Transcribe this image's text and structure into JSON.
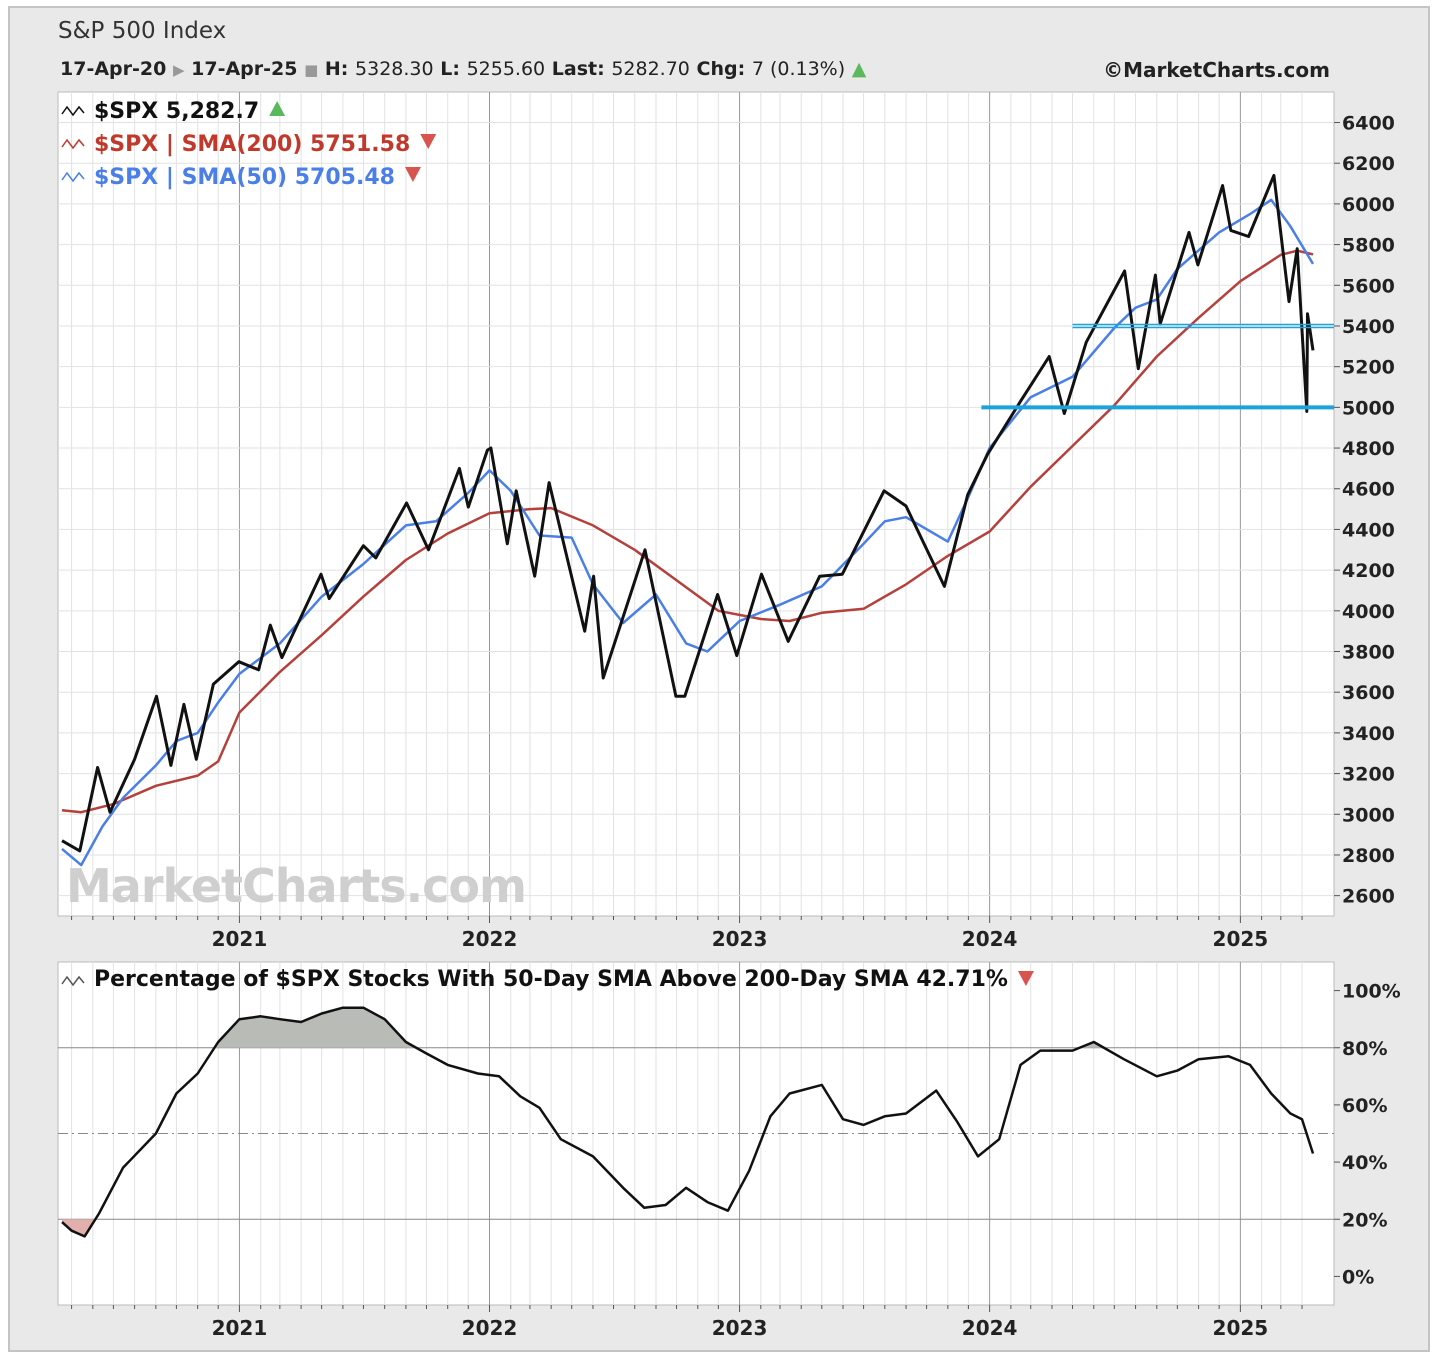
{
  "header": {
    "title": "S&P 500 Index",
    "start_date": "17-Apr-20",
    "end_date": "17-Apr-25",
    "high_label": "H:",
    "high": "5328.30",
    "low_label": "L:",
    "low": "5255.60",
    "last_label": "Last:",
    "last": "5282.70",
    "chg_label": "Chg:",
    "chg": "7 (0.13%)",
    "copyright": "©MarketCharts.com",
    "watermark": "MarketCharts.com"
  },
  "colors": {
    "price": "#111111",
    "sma200": "#b5403c",
    "sma50": "#4a7fe8",
    "hline": "#1aa3dc",
    "up": "#5cb85c",
    "down": "#d9534f"
  },
  "legend_top": [
    {
      "text": "$SPX 5,282.7",
      "color": "#111111",
      "arrow": "up"
    },
    {
      "text": "$SPX | SMA(200) 5751.58",
      "color": "#c0392b",
      "arrow": "down"
    },
    {
      "text": "$SPX | SMA(50) 5705.48",
      "color": "#4a7fe8",
      "arrow": "down"
    }
  ],
  "legend_bottom": {
    "text": "Percentage of $SPX Stocks With 50-Day SMA Above 200-Day SMA 42.71%",
    "color": "#111111",
    "arrow": "down"
  },
  "chart_data": [
    {
      "type": "line",
      "x_ticks": [
        "2021",
        "2022",
        "2023",
        "2024",
        "2025"
      ],
      "ylim": [
        2500,
        6550
      ],
      "y_ticks": [
        2600,
        2800,
        3000,
        3200,
        3400,
        3600,
        3800,
        4000,
        4200,
        4400,
        4600,
        4800,
        5000,
        5200,
        5400,
        5600,
        5800,
        6000,
        6200,
        6400
      ],
      "series": [
        {
          "name": "$SPX",
          "points": [
            [
              "2020-04-17",
              2870
            ],
            [
              "2020-05-13",
              2820
            ],
            [
              "2020-06-08",
              3230
            ],
            [
              "2020-06-26",
              3010
            ],
            [
              "2020-08-01",
              3270
            ],
            [
              "2020-09-02",
              3580
            ],
            [
              "2020-09-23",
              3240
            ],
            [
              "2020-10-12",
              3540
            ],
            [
              "2020-10-30",
              3270
            ],
            [
              "2020-11-24",
              3640
            ],
            [
              "2020-12-31",
              3750
            ],
            [
              "2021-01-29",
              3710
            ],
            [
              "2021-02-15",
              3930
            ],
            [
              "2021-03-04",
              3770
            ],
            [
              "2021-04-30",
              4180
            ],
            [
              "2021-05-12",
              4060
            ],
            [
              "2021-07-01",
              4320
            ],
            [
              "2021-07-19",
              4260
            ],
            [
              "2021-09-02",
              4530
            ],
            [
              "2021-10-04",
              4300
            ],
            [
              "2021-11-18",
              4700
            ],
            [
              "2021-12-01",
              4510
            ],
            [
              "2021-12-29",
              4790
            ],
            [
              "2022-01-03",
              4800
            ],
            [
              "2022-01-27",
              4330
            ],
            [
              "2022-02-09",
              4590
            ],
            [
              "2022-03-08",
              4170
            ],
            [
              "2022-03-29",
              4630
            ],
            [
              "2022-05-20",
              3900
            ],
            [
              "2022-06-02",
              4170
            ],
            [
              "2022-06-16",
              3670
            ],
            [
              "2022-08-16",
              4300
            ],
            [
              "2022-09-30",
              3580
            ],
            [
              "2022-10-13",
              3580
            ],
            [
              "2022-11-30",
              4080
            ],
            [
              "2022-12-28",
              3780
            ],
            [
              "2023-02-02",
              4180
            ],
            [
              "2023-03-13",
              3850
            ],
            [
              "2023-04-28",
              4170
            ],
            [
              "2023-05-31",
              4180
            ],
            [
              "2023-07-31",
              4590
            ],
            [
              "2023-09-01",
              4515
            ],
            [
              "2023-10-27",
              4120
            ],
            [
              "2023-11-30",
              4570
            ],
            [
              "2023-12-29",
              4770
            ],
            [
              "2024-02-15",
              5030
            ],
            [
              "2024-03-28",
              5250
            ],
            [
              "2024-04-19",
              4970
            ],
            [
              "2024-05-21",
              5320
            ],
            [
              "2024-07-16",
              5670
            ],
            [
              "2024-08-05",
              5190
            ],
            [
              "2024-08-30",
              5650
            ],
            [
              "2024-09-06",
              5410
            ],
            [
              "2024-10-18",
              5860
            ],
            [
              "2024-10-31",
              5700
            ],
            [
              "2024-12-06",
              6090
            ],
            [
              "2024-12-18",
              5870
            ],
            [
              "2025-01-13",
              5840
            ],
            [
              "2025-02-19",
              6140
            ],
            [
              "2025-03-13",
              5520
            ],
            [
              "2025-03-25",
              5780
            ],
            [
              "2025-04-08",
              4980
            ],
            [
              "2025-04-09",
              5460
            ],
            [
              "2025-04-17",
              5280
            ]
          ]
        },
        {
          "name": "$SPX | SMA(200)",
          "points": [
            [
              "2020-04-17",
              3020
            ],
            [
              "2020-05-15",
              3010
            ],
            [
              "2020-07-01",
              3050
            ],
            [
              "2020-09-01",
              3140
            ],
            [
              "2020-11-01",
              3190
            ],
            [
              "2020-12-01",
              3260
            ],
            [
              "2021-01-01",
              3500
            ],
            [
              "2021-03-01",
              3700
            ],
            [
              "2021-05-01",
              3880
            ],
            [
              "2021-07-01",
              4070
            ],
            [
              "2021-09-01",
              4250
            ],
            [
              "2021-11-01",
              4380
            ],
            [
              "2022-01-01",
              4480
            ],
            [
              "2022-03-01",
              4500
            ],
            [
              "2022-04-01",
              4505
            ],
            [
              "2022-06-01",
              4420
            ],
            [
              "2022-08-01",
              4300
            ],
            [
              "2022-10-01",
              4150
            ],
            [
              "2022-12-01",
              4000
            ],
            [
              "2023-02-01",
              3960
            ],
            [
              "2023-03-15",
              3950
            ],
            [
              "2023-05-01",
              3990
            ],
            [
              "2023-07-01",
              4010
            ],
            [
              "2023-09-01",
              4130
            ],
            [
              "2023-11-01",
              4270
            ],
            [
              "2024-01-01",
              4390
            ],
            [
              "2024-03-01",
              4610
            ],
            [
              "2024-05-01",
              4810
            ],
            [
              "2024-07-01",
              5010
            ],
            [
              "2024-09-01",
              5250
            ],
            [
              "2024-11-01",
              5440
            ],
            [
              "2025-01-01",
              5620
            ],
            [
              "2025-03-01",
              5750
            ],
            [
              "2025-03-25",
              5770
            ],
            [
              "2025-04-17",
              5752
            ]
          ]
        },
        {
          "name": "$SPX | SMA(50)",
          "points": [
            [
              "2020-04-17",
              2830
            ],
            [
              "2020-05-15",
              2750
            ],
            [
              "2020-06-15",
              2940
            ],
            [
              "2020-07-15",
              3080
            ],
            [
              "2020-09-01",
              3240
            ],
            [
              "2020-10-01",
              3360
            ],
            [
              "2020-11-01",
              3400
            ],
            [
              "2020-12-01",
              3550
            ],
            [
              "2021-01-01",
              3690
            ],
            [
              "2021-03-01",
              3840
            ],
            [
              "2021-05-01",
              4070
            ],
            [
              "2021-07-01",
              4230
            ],
            [
              "2021-09-01",
              4420
            ],
            [
              "2021-10-15",
              4440
            ],
            [
              "2021-12-01",
              4580
            ],
            [
              "2022-01-01",
              4690
            ],
            [
              "2022-02-01",
              4590
            ],
            [
              "2022-03-15",
              4370
            ],
            [
              "2022-05-01",
              4360
            ],
            [
              "2022-06-01",
              4130
            ],
            [
              "2022-07-15",
              3940
            ],
            [
              "2022-09-01",
              4080
            ],
            [
              "2022-10-15",
              3840
            ],
            [
              "2022-11-15",
              3800
            ],
            [
              "2023-01-01",
              3950
            ],
            [
              "2023-03-01",
              4030
            ],
            [
              "2023-05-01",
              4120
            ],
            [
              "2023-07-01",
              4330
            ],
            [
              "2023-08-01",
              4440
            ],
            [
              "2023-09-01",
              4460
            ],
            [
              "2023-11-01",
              4340
            ],
            [
              "2023-12-01",
              4560
            ],
            [
              "2024-01-01",
              4800
            ],
            [
              "2024-03-01",
              5050
            ],
            [
              "2024-05-01",
              5150
            ],
            [
              "2024-07-01",
              5390
            ],
            [
              "2024-08-01",
              5490
            ],
            [
              "2024-09-01",
              5530
            ],
            [
              "2024-10-01",
              5680
            ],
            [
              "2024-12-01",
              5860
            ],
            [
              "2025-01-15",
              5950
            ],
            [
              "2025-02-15",
              6020
            ],
            [
              "2025-03-15",
              5890
            ],
            [
              "2025-04-17",
              5705
            ]
          ]
        },
        {
          "name": "support_5400",
          "style": "horizontal",
          "y": 5400,
          "x_from": "2024-05-01",
          "x_to": "2025-04-17"
        },
        {
          "name": "support_5000",
          "style": "horizontal",
          "y": 5000,
          "x_from": "2023-12-20",
          "x_to": "2025-04-17"
        }
      ]
    },
    {
      "type": "area",
      "x_ticks": [
        "2021",
        "2022",
        "2023",
        "2024",
        "2025"
      ],
      "ylim": [
        -10,
        110
      ],
      "y_ticks": [
        0,
        20,
        40,
        60,
        80,
        100
      ],
      "y_tick_labels": [
        "0%",
        "20%",
        "40%",
        "60%",
        "80%",
        "100%"
      ],
      "reference_lines": [
        20,
        50,
        80
      ],
      "series": [
        {
          "name": "Percentage of $SPX Stocks With 50-Day SMA Above 200-Day SMA",
          "points": [
            [
              "2020-04-17",
              19
            ],
            [
              "2020-05-01",
              16
            ],
            [
              "2020-05-20",
              14
            ],
            [
              "2020-06-10",
              22
            ],
            [
              "2020-07-15",
              38
            ],
            [
              "2020-09-01",
              50
            ],
            [
              "2020-10-01",
              64
            ],
            [
              "2020-11-01",
              71
            ],
            [
              "2020-12-01",
              82
            ],
            [
              "2021-01-01",
              90
            ],
            [
              "2021-02-01",
              91
            ],
            [
              "2021-03-01",
              90
            ],
            [
              "2021-04-01",
              89
            ],
            [
              "2021-05-01",
              92
            ],
            [
              "2021-06-01",
              94
            ],
            [
              "2021-07-01",
              94
            ],
            [
              "2021-08-01",
              90
            ],
            [
              "2021-09-01",
              82
            ],
            [
              "2021-10-01",
              78
            ],
            [
              "2021-11-01",
              74
            ],
            [
              "2021-12-15",
              71
            ],
            [
              "2022-01-15",
              70
            ],
            [
              "2022-02-15",
              63
            ],
            [
              "2022-03-15",
              59
            ],
            [
              "2022-04-15",
              48
            ],
            [
              "2022-06-01",
              42
            ],
            [
              "2022-07-15",
              31
            ],
            [
              "2022-08-15",
              24
            ],
            [
              "2022-09-15",
              25
            ],
            [
              "2022-10-15",
              31
            ],
            [
              "2022-11-15",
              26
            ],
            [
              "2022-12-15",
              23
            ],
            [
              "2023-01-15",
              37
            ],
            [
              "2023-02-15",
              56
            ],
            [
              "2023-03-15",
              64
            ],
            [
              "2023-05-01",
              67
            ],
            [
              "2023-06-01",
              55
            ],
            [
              "2023-07-01",
              53
            ],
            [
              "2023-08-01",
              56
            ],
            [
              "2023-09-01",
              57
            ],
            [
              "2023-10-15",
              65
            ],
            [
              "2023-11-15",
              54
            ],
            [
              "2023-12-15",
              42
            ],
            [
              "2024-01-15",
              48
            ],
            [
              "2024-02-15",
              74
            ],
            [
              "2024-03-15",
              79
            ],
            [
              "2024-05-01",
              79
            ],
            [
              "2024-06-01",
              82
            ],
            [
              "2024-07-15",
              76
            ],
            [
              "2024-09-01",
              70
            ],
            [
              "2024-10-01",
              72
            ],
            [
              "2024-11-01",
              76
            ],
            [
              "2024-12-15",
              77
            ],
            [
              "2025-01-15",
              74
            ],
            [
              "2025-02-15",
              64
            ],
            [
              "2025-03-15",
              57
            ],
            [
              "2025-04-01",
              55
            ],
            [
              "2025-04-17",
              43
            ]
          ]
        }
      ]
    }
  ]
}
